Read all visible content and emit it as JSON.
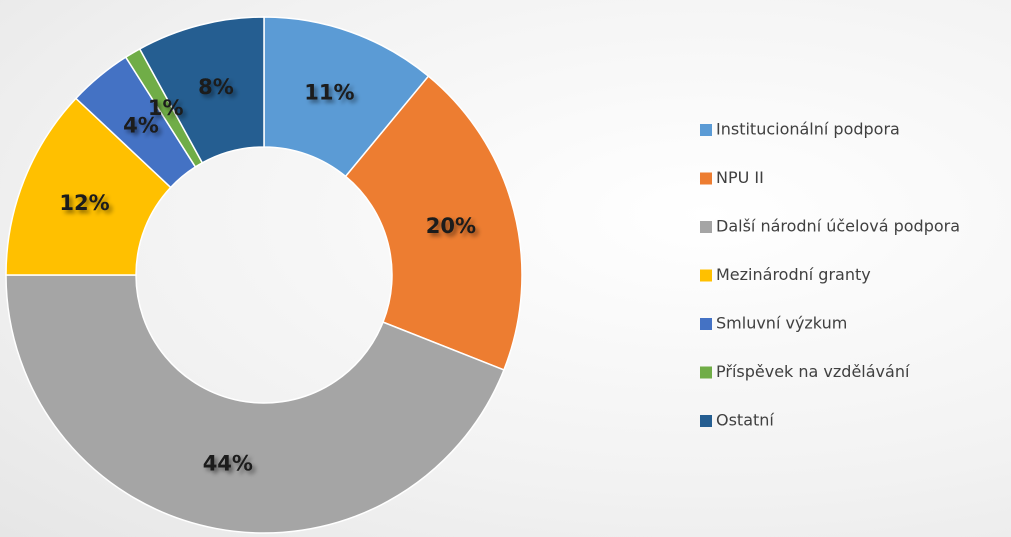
{
  "chart_data": {
    "type": "donut",
    "categories": [
      "Institucionální podpora",
      "NPU II",
      "Další národní účelová podpora",
      "Mezinárodní granty",
      "Smluvní výzkum",
      "Příspěvek na vzdělávání",
      "Ostatní"
    ],
    "values": [
      11,
      20,
      44,
      12,
      4,
      1,
      8
    ],
    "value_labels": [
      "11%",
      "20%",
      "44%",
      "12%",
      "4%",
      "1%",
      "8%"
    ],
    "colors": [
      "#5b9bd5",
      "#ed7d31",
      "#a5a5a5",
      "#ffc000",
      "#4472c4",
      "#70ad47",
      "#255e91"
    ],
    "legend": "right"
  }
}
